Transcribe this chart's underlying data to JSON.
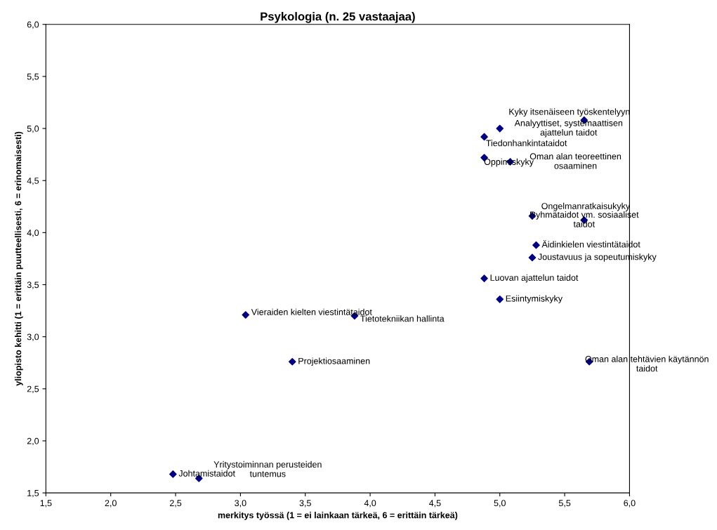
{
  "chart_data": {
    "type": "scatter",
    "title": "Psykologia (n. 25 vastaajaa)",
    "xlabel": "merkitys työssä (1 = ei lainkaan tärkeä, 6 = erittäin tärkeä)",
    "ylabel": "yliopisto kehitti (1 = erittäin puutteellisesti, 6 = erinomaisesti)",
    "x": [
      5.65,
      5.0,
      4.88,
      4.88,
      5.08,
      5.25,
      5.65,
      5.28,
      5.25,
      4.88,
      5.0,
      3.04,
      3.88,
      3.4,
      5.69,
      2.48,
      2.68
    ],
    "series": [
      {
        "color": "#000080",
        "values": [
          5.08,
          5.0,
          4.92,
          4.72,
          4.68,
          4.16,
          4.12,
          3.88,
          3.76,
          3.56,
          3.36,
          3.21,
          3.2,
          2.76,
          2.76,
          1.68,
          1.64
        ]
      }
    ],
    "marker": "diamond",
    "xlim": [
      1.5,
      6.0
    ],
    "ylim": [
      1.5,
      6.0
    ],
    "xticks": [
      {
        "value": 1.5,
        "label": "1,5"
      },
      {
        "value": 2.0,
        "label": "2,0"
      },
      {
        "value": 2.5,
        "label": "2,5"
      },
      {
        "value": 3.0,
        "label": "3,0"
      },
      {
        "value": 3.5,
        "label": "3,5"
      },
      {
        "value": 4.0,
        "label": "4,0"
      },
      {
        "value": 4.5,
        "label": "4,5"
      },
      {
        "value": 5.0,
        "label": "5,0"
      },
      {
        "value": 5.5,
        "label": "5,5"
      },
      {
        "value": 6.0,
        "label": "6,0"
      }
    ],
    "yticks": [
      {
        "value": 1.5,
        "label": "1,5"
      },
      {
        "value": 2.0,
        "label": "2,0"
      },
      {
        "value": 2.5,
        "label": "2,5"
      },
      {
        "value": 3.0,
        "label": "3,0"
      },
      {
        "value": 3.5,
        "label": "3,5"
      },
      {
        "value": 4.0,
        "label": "4,0"
      },
      {
        "value": 4.5,
        "label": "4,5"
      },
      {
        "value": 5.0,
        "label": "5,0"
      },
      {
        "value": 5.5,
        "label": "5,5"
      },
      {
        "value": 6.0,
        "label": "6,0"
      }
    ],
    "grid": false,
    "annotations": [
      {
        "text": "Kyky itsenäiseen työskentelyyn",
        "x": 5.65,
        "y": 5.08
      },
      {
        "text": "Analyyttiset, systemaattisen\najattelun taidot",
        "x": 5.0,
        "y": 5.0
      },
      {
        "text": "Tiedonhankintataidot",
        "x": 4.88,
        "y": 4.92
      },
      {
        "text": "Oppimiskyky",
        "x": 4.88,
        "y": 4.72
      },
      {
        "text": "Oman alan teoreettinen\nosaaminen",
        "x": 5.08,
        "y": 4.68
      },
      {
        "text": "Ongelmanratkaisukyky",
        "x": 5.25,
        "y": 4.16
      },
      {
        "text": "Ryhmätaidot ym. sosiaaliset\ntaidot",
        "x": 5.65,
        "y": 4.12
      },
      {
        "text": "Äidinkielen viestintätaidot",
        "x": 5.28,
        "y": 3.88
      },
      {
        "text": "Joustavuus ja sopeutumiskyky",
        "x": 5.25,
        "y": 3.76
      },
      {
        "text": "Luovan ajattelun taidot",
        "x": 4.88,
        "y": 3.56
      },
      {
        "text": "Esiintymiskyky",
        "x": 5.0,
        "y": 3.36
      },
      {
        "text": "Vieraiden kielten viestintätaidot",
        "x": 3.04,
        "y": 3.21
      },
      {
        "text": "Tietotekniikan hallinta",
        "x": 3.88,
        "y": 3.2
      },
      {
        "text": "Projektiosaaminen",
        "x": 3.4,
        "y": 2.76
      },
      {
        "text": "Oman alan tehtävien käytännön\ntaidot",
        "x": 5.69,
        "y": 2.76
      },
      {
        "text": "Johtamistaidot",
        "x": 2.48,
        "y": 1.68
      },
      {
        "text": "Yritystoiminnan perusteiden\ntuntemus",
        "x": 2.68,
        "y": 1.64
      }
    ]
  }
}
